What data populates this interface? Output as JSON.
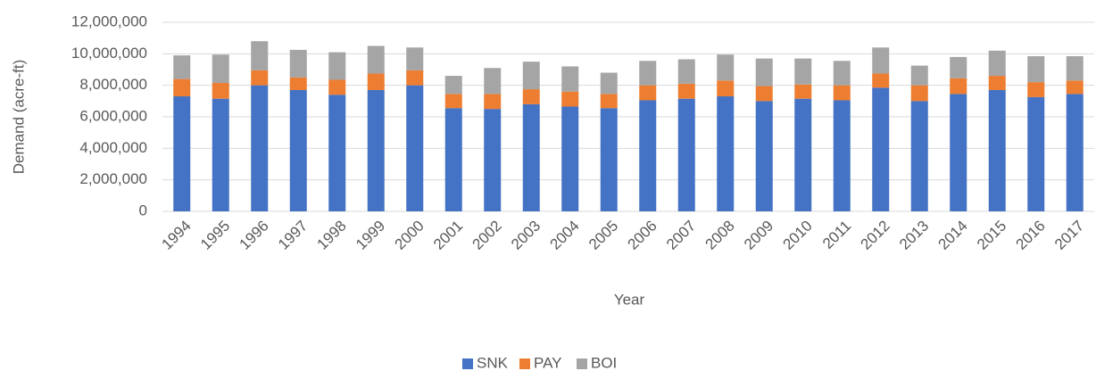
{
  "chart_data": {
    "type": "stacked_bar",
    "y_label": "Demand (acre-ft)",
    "x_label": "Year",
    "categories": [
      "1994",
      "1995",
      "1996",
      "1997",
      "1998",
      "1999",
      "2000",
      "2001",
      "2002",
      "2003",
      "2004",
      "2005",
      "2006",
      "2007",
      "2008",
      "2009",
      "2010",
      "2011",
      "2012",
      "2013",
      "2014",
      "2015",
      "2016",
      "2017"
    ],
    "series": [
      {
        "name": "SNK",
        "color": "#4472c4",
        "values": [
          7300000,
          7150000,
          8000000,
          7700000,
          7400000,
          7700000,
          8000000,
          6550000,
          6500000,
          6800000,
          6650000,
          6550000,
          7050000,
          7150000,
          7300000,
          7000000,
          7150000,
          7050000,
          7850000,
          7000000,
          7450000,
          7700000,
          7250000,
          7450000
        ]
      },
      {
        "name": "PAY",
        "color": "#ed7d31",
        "values": [
          1100000,
          1000000,
          950000,
          800000,
          950000,
          1050000,
          950000,
          900000,
          950000,
          950000,
          950000,
          900000,
          950000,
          950000,
          1000000,
          950000,
          900000,
          950000,
          900000,
          1000000,
          1000000,
          900000,
          950000,
          850000
        ]
      },
      {
        "name": "BOI",
        "color": "#a5a5a5",
        "values": [
          1500000,
          1800000,
          1850000,
          1750000,
          1750000,
          1750000,
          1450000,
          1150000,
          1650000,
          1750000,
          1600000,
          1350000,
          1550000,
          1550000,
          1650000,
          1750000,
          1650000,
          1550000,
          1650000,
          1250000,
          1350000,
          1600000,
          1650000,
          1550000
        ]
      }
    ],
    "ylim": [
      0,
      12000000
    ],
    "yticks": [
      0,
      {
        "value": 2000000,
        "label": "2,000,000"
      },
      {
        "value": 4000000,
        "label": "4,000,000"
      },
      {
        "value": 6000000,
        "label": "6,000,000"
      },
      {
        "value": 8000000,
        "label": "8,000,000"
      },
      {
        "value": 10000000,
        "label": "10,000,000"
      },
      {
        "value": 12000000,
        "label": "12,000,000"
      }
    ],
    "grid": true,
    "legend": "bottom"
  }
}
